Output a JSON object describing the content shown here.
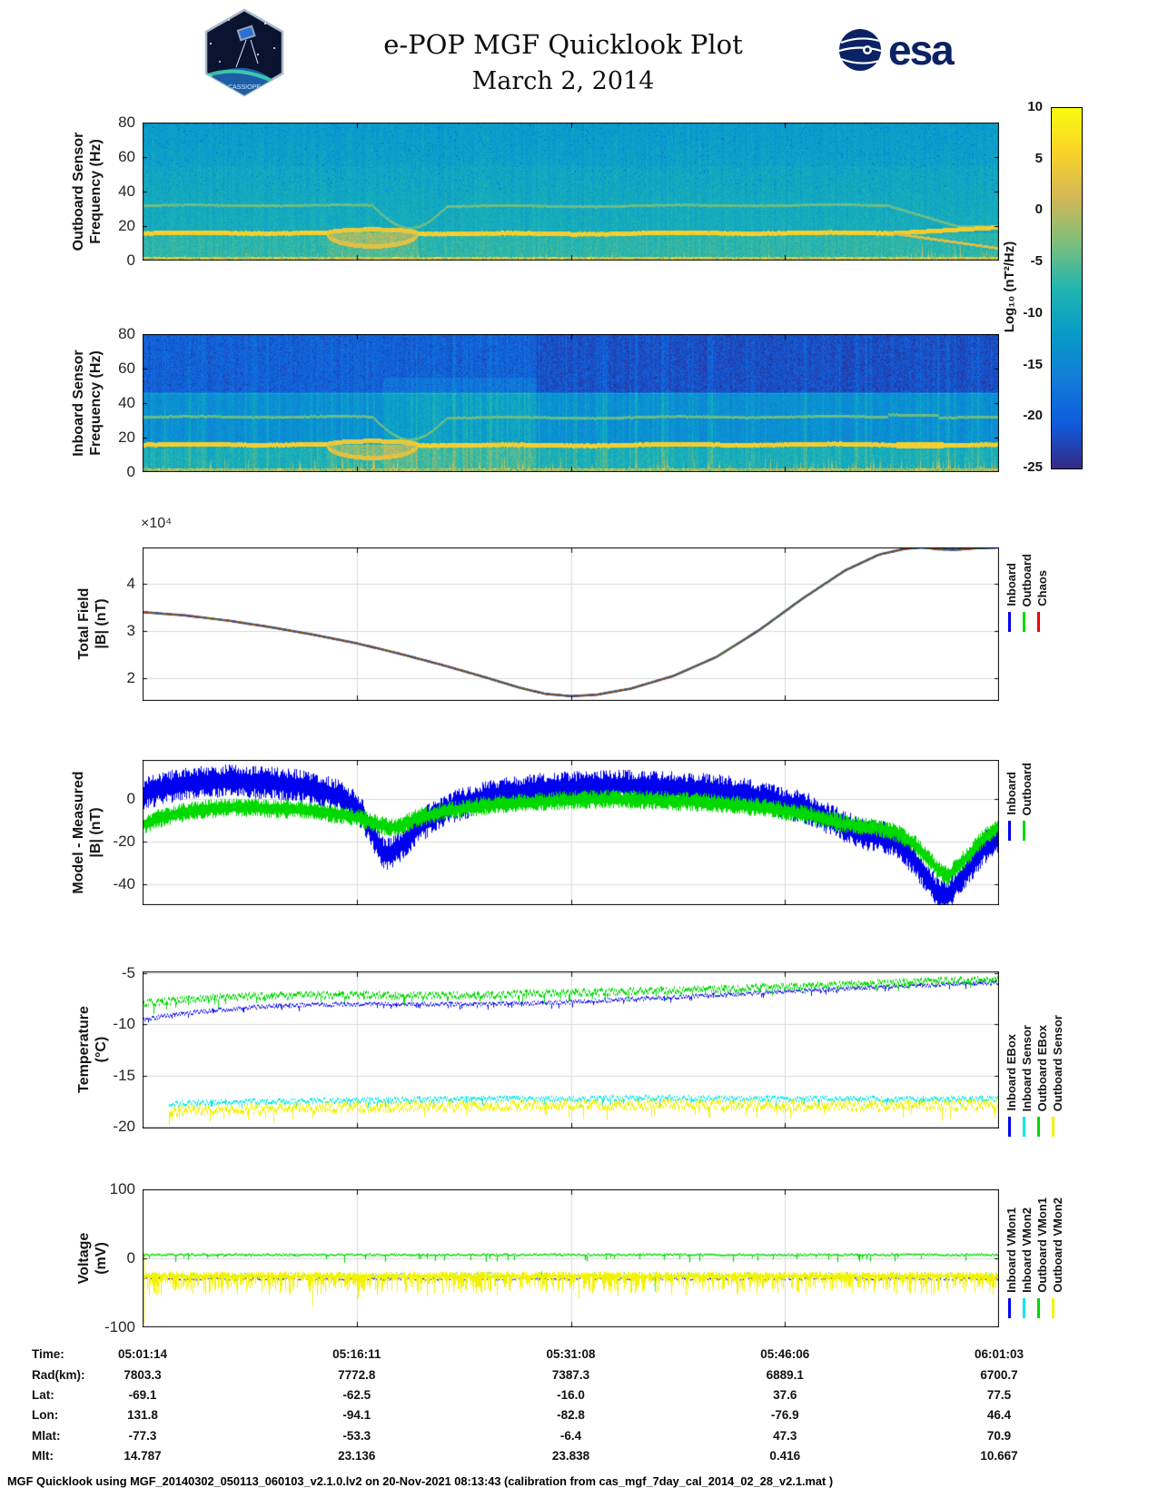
{
  "header": {
    "title": "e-POP MGF Quicklook Plot",
    "date": "March 2, 2014",
    "esa_text": "esa",
    "patch_name": "CASSIOPE"
  },
  "colorbar": {
    "label": "Log₁₀ (nT²/Hz)",
    "ticks": [
      10,
      5,
      0,
      -5,
      -10,
      -15,
      -20,
      -25
    ],
    "range": [
      -25,
      10
    ]
  },
  "panels": [
    {
      "ylabel1": "Outboard Sensor",
      "ylabel2": "Frequency (Hz)"
    },
    {
      "ylabel1": "Inboard Sensor",
      "ylabel2": "Frequency (Hz)"
    },
    {
      "ylabel1": "Total Field",
      "ylabel2": "|B| (nT)",
      "exp_label": "×10⁴",
      "legend": [
        {
          "label": "Inboard",
          "color": "#0000f0"
        },
        {
          "label": "Outboard",
          "color": "#00d800"
        },
        {
          "label": "Chaos",
          "color": "#f00000"
        }
      ]
    },
    {
      "ylabel1": "Model - Measured",
      "ylabel2": "|B| (nT)",
      "legend": [
        {
          "label": "Inboard",
          "color": "#0000f0"
        },
        {
          "label": "Outboard",
          "color": "#00d800"
        }
      ]
    },
    {
      "ylabel1": "Temperature",
      "ylabel2": "(°C)",
      "legend": [
        {
          "label": "Inboard EBox",
          "color": "#0000f0"
        },
        {
          "label": "Inboard Sensor",
          "color": "#00e8e8"
        },
        {
          "label": "Outboard EBox",
          "color": "#00d800"
        },
        {
          "label": "Outboard Sensor",
          "color": "#f2f200"
        }
      ]
    },
    {
      "ylabel1": "Voltage",
      "ylabel2": "(mV)",
      "legend": [
        {
          "label": "Inboard VMon1",
          "color": "#0000f0"
        },
        {
          "label": "Inboard VMon2",
          "color": "#00e8e8"
        },
        {
          "label": "Outboard VMon1",
          "color": "#00d800"
        },
        {
          "label": "Outboard VMon2",
          "color": "#f2f200"
        }
      ]
    }
  ],
  "table": {
    "rows": [
      {
        "label": "Time:",
        "values": [
          "05:01:14",
          "05:16:11",
          "05:31:08",
          "05:46:06",
          "06:01:03"
        ]
      },
      {
        "label": "Rad(km):",
        "values": [
          "7803.3",
          "7772.8",
          "7387.3",
          "6889.1",
          "6700.7"
        ]
      },
      {
        "label": "Lat:",
        "values": [
          "-69.1",
          "-62.5",
          "-16.0",
          "37.6",
          "77.5"
        ]
      },
      {
        "label": "Lon:",
        "values": [
          "131.8",
          "-94.1",
          "-82.8",
          "-76.9",
          "46.4"
        ]
      },
      {
        "label": "Mlat:",
        "values": [
          "-77.3",
          "-53.3",
          "-6.4",
          "47.3",
          "70.9"
        ]
      },
      {
        "label": "Mlt:",
        "values": [
          "14.787",
          "23.136",
          "23.838",
          "0.416",
          "10.667"
        ]
      }
    ]
  },
  "footer": {
    "text": "MGF Quicklook using MGF_20140302_050113_060103_v2.1.0.lv2 on 20-Nov-2021 08:13:43 (calibration from cas_mgf_7day_cal_2014_02_28_v2.1.mat )"
  },
  "chart_data": [
    {
      "id": "outboard_spectrogram",
      "type": "heatmap",
      "ylabel": "Outboard Sensor Frequency (Hz)",
      "ylim": [
        0,
        80
      ],
      "yticks": [
        0,
        20,
        40,
        60,
        80
      ],
      "x_time_range": [
        "05:01:14",
        "06:01:03"
      ],
      "colorbar_label": "Log₁₀ (nT²/Hz)",
      "colorbar_range": [
        -25,
        10
      ],
      "features": {
        "persistent_tone_hz": 16,
        "harmonic_hz": 32,
        "eye_center_frac": 0.268,
        "eye_halfwidth_frac": 0.053,
        "eye_min_hz": 8.5,
        "right_split_start_frac": 0.875,
        "broadband_noise_below_hz": 3,
        "style": "outboard"
      }
    },
    {
      "id": "inboard_spectrogram",
      "type": "heatmap",
      "ylabel": "Inboard Sensor Frequency (Hz)",
      "ylim": [
        0,
        80
      ],
      "yticks": [
        0,
        20,
        40,
        60,
        80
      ],
      "x_time_range": [
        "05:01:14",
        "06:01:03"
      ],
      "features": {
        "persistent_tone_hz": 16,
        "harmonic_hz": 32,
        "eye_center_frac": 0.268,
        "eye_halfwidth_frac": 0.053,
        "eye_min_hz": 8.5,
        "blob_frac": [
          0.88,
          0.935
        ],
        "broadband_noise_below_hz": 3,
        "style": "inboard"
      }
    },
    {
      "id": "total_field",
      "type": "line",
      "ylabel": "Total Field |B| (nT)",
      "scale_label": "×10⁴",
      "ylim": [
        1.52,
        4.77
      ],
      "yticks": [
        2,
        3,
        4
      ],
      "series_names": [
        "Inboard",
        "Outboard",
        "Chaos"
      ],
      "note": "all three curves overlap",
      "points_x_frac_value_1e4nT": [
        [
          0,
          3.4
        ],
        [
          0.05,
          3.33
        ],
        [
          0.1,
          3.22
        ],
        [
          0.15,
          3.08
        ],
        [
          0.2,
          2.92
        ],
        [
          0.25,
          2.74
        ],
        [
          0.3,
          2.52
        ],
        [
          0.35,
          2.28
        ],
        [
          0.4,
          2.02
        ],
        [
          0.44,
          1.8
        ],
        [
          0.47,
          1.67
        ],
        [
          0.5,
          1.62
        ],
        [
          0.53,
          1.65
        ],
        [
          0.57,
          1.78
        ],
        [
          0.62,
          2.05
        ],
        [
          0.67,
          2.45
        ],
        [
          0.72,
          3.02
        ],
        [
          0.77,
          3.68
        ],
        [
          0.82,
          4.28
        ],
        [
          0.86,
          4.62
        ],
        [
          0.89,
          4.74
        ],
        [
          0.91,
          4.77
        ],
        [
          0.93,
          4.73
        ],
        [
          0.95,
          4.72
        ],
        [
          0.97,
          4.75
        ],
        [
          1,
          4.77
        ]
      ]
    },
    {
      "id": "model_minus_measured",
      "type": "line",
      "ylabel": "Model - Measured |B| (nT)",
      "ylim": [
        -49.8,
        18.3
      ],
      "yticks": [
        0,
        -20,
        -40
      ],
      "series": [
        {
          "name": "Inboard",
          "color": "#0000f0",
          "noise_amp_nT": 6.5,
          "points": [
            [
              0,
              2
            ],
            [
              0.02,
              5
            ],
            [
              0.05,
              7
            ],
            [
              0.08,
              8
            ],
            [
              0.1,
              8.5
            ],
            [
              0.13,
              8
            ],
            [
              0.16,
              7
            ],
            [
              0.19,
              6
            ],
            [
              0.21,
              4
            ],
            [
              0.23,
              1
            ],
            [
              0.25,
              -4
            ],
            [
              0.26,
              -10
            ],
            [
              0.27,
              -18
            ],
            [
              0.28,
              -25
            ],
            [
              0.29,
              -26
            ],
            [
              0.3,
              -22
            ],
            [
              0.32,
              -14
            ],
            [
              0.34,
              -8
            ],
            [
              0.36,
              -4
            ],
            [
              0.4,
              1
            ],
            [
              0.44,
              3.5
            ],
            [
              0.48,
              5
            ],
            [
              0.52,
              5.5
            ],
            [
              0.56,
              6
            ],
            [
              0.6,
              5.5
            ],
            [
              0.64,
              5
            ],
            [
              0.68,
              3.5
            ],
            [
              0.71,
              1.5
            ],
            [
              0.74,
              -1
            ],
            [
              0.77,
              -4
            ],
            [
              0.79,
              -7
            ],
            [
              0.81,
              -11
            ],
            [
              0.83,
              -15
            ],
            [
              0.85,
              -17
            ],
            [
              0.86,
              -17.5
            ],
            [
              0.875,
              -19
            ],
            [
              0.89,
              -24
            ],
            [
              0.905,
              -31
            ],
            [
              0.92,
              -40
            ],
            [
              0.93,
              -46
            ],
            [
              0.94,
              -45
            ],
            [
              0.95,
              -40
            ],
            [
              0.965,
              -32
            ],
            [
              0.98,
              -24
            ],
            [
              1,
              -17
            ]
          ]
        },
        {
          "name": "Outboard",
          "color": "#00d800",
          "noise_amp_nT": 3.8,
          "points": [
            [
              0,
              -12
            ],
            [
              0.02,
              -9
            ],
            [
              0.05,
              -6
            ],
            [
              0.08,
              -4.5
            ],
            [
              0.1,
              -4
            ],
            [
              0.15,
              -4.5
            ],
            [
              0.18,
              -5
            ],
            [
              0.21,
              -6
            ],
            [
              0.24,
              -8
            ],
            [
              0.26,
              -10
            ],
            [
              0.275,
              -12
            ],
            [
              0.29,
              -13.5
            ],
            [
              0.305,
              -12
            ],
            [
              0.32,
              -9
            ],
            [
              0.35,
              -6
            ],
            [
              0.4,
              -3
            ],
            [
              0.45,
              -1.5
            ],
            [
              0.5,
              -0.5
            ],
            [
              0.55,
              0
            ],
            [
              0.6,
              -0.5
            ],
            [
              0.65,
              -1.5
            ],
            [
              0.7,
              -3
            ],
            [
              0.74,
              -5
            ],
            [
              0.78,
              -8
            ],
            [
              0.81,
              -11
            ],
            [
              0.84,
              -13
            ],
            [
              0.86,
              -13.5
            ],
            [
              0.88,
              -16
            ],
            [
              0.9,
              -21
            ],
            [
              0.915,
              -27
            ],
            [
              0.93,
              -34
            ],
            [
              0.94,
              -36
            ],
            [
              0.95,
              -32
            ],
            [
              0.965,
              -26
            ],
            [
              0.98,
              -19
            ],
            [
              1,
              -13
            ]
          ]
        }
      ]
    },
    {
      "id": "temperature",
      "type": "line",
      "ylabel": "Temperature (°C)",
      "ylim": [
        -20.2,
        -4.8
      ],
      "yticks": [
        -5,
        -10,
        -15,
        -20
      ],
      "series": [
        {
          "name": "Inboard EBox",
          "color": "#0000f0",
          "noise_amp": 0.18,
          "points": [
            [
              0,
              -9.5
            ],
            [
              0.05,
              -8.9
            ],
            [
              0.1,
              -8.5
            ],
            [
              0.15,
              -8.2
            ],
            [
              0.2,
              -8.05
            ],
            [
              0.3,
              -8.0
            ],
            [
              0.4,
              -8.0
            ],
            [
              0.45,
              -7.95
            ],
            [
              0.5,
              -7.8
            ],
            [
              0.6,
              -7.4
            ],
            [
              0.7,
              -7.0
            ],
            [
              0.8,
              -6.6
            ],
            [
              0.9,
              -6.2
            ],
            [
              1,
              -5.9
            ]
          ]
        },
        {
          "name": "Outboard EBox",
          "color": "#00d800",
          "noise_amp": 0.32,
          "points": [
            [
              0,
              -7.9
            ],
            [
              0.05,
              -7.6
            ],
            [
              0.1,
              -7.3
            ],
            [
              0.15,
              -7.2
            ],
            [
              0.25,
              -7.1
            ],
            [
              0.35,
              -7.2
            ],
            [
              0.45,
              -7.0
            ],
            [
              0.55,
              -6.8
            ],
            [
              0.65,
              -6.6
            ],
            [
              0.75,
              -6.3
            ],
            [
              0.85,
              -6.0
            ],
            [
              0.95,
              -5.7
            ],
            [
              1,
              -5.6
            ]
          ]
        },
        {
          "name": "Inboard Sensor",
          "color": "#00e8e8",
          "noise_amp": 0.25,
          "points": [
            [
              0,
              -17.9
            ],
            [
              0.1,
              -17.6
            ],
            [
              0.2,
              -17.5
            ],
            [
              0.3,
              -17.4
            ],
            [
              0.4,
              -17.3
            ],
            [
              0.5,
              -17.3
            ],
            [
              0.6,
              -17.2
            ],
            [
              0.7,
              -17.3
            ],
            [
              0.8,
              -17.3
            ],
            [
              0.9,
              -17.3
            ],
            [
              1,
              -17.3
            ]
          ]
        },
        {
          "name": "Outboard Sensor",
          "color": "#f2f200",
          "noise_amp": 0.45,
          "points": [
            [
              0,
              -18.6
            ],
            [
              0.1,
              -18.3
            ],
            [
              0.2,
              -18.2
            ],
            [
              0.3,
              -18.1
            ],
            [
              0.4,
              -18.0
            ],
            [
              0.5,
              -17.9
            ],
            [
              0.6,
              -17.9
            ],
            [
              0.7,
              -17.9
            ],
            [
              0.8,
              -18.0
            ],
            [
              0.9,
              -18.0
            ],
            [
              1,
              -17.9
            ]
          ]
        }
      ]
    },
    {
      "id": "voltage",
      "type": "line",
      "ylabel": "Voltage (mV)",
      "ylim": [
        -100,
        100
      ],
      "yticks": [
        100,
        0,
        -100
      ],
      "series": [
        {
          "name": "Inboard VMon1",
          "color": "#0000f0",
          "base_mV": -30,
          "style": "dashed",
          "noise_amp": 2
        },
        {
          "name": "Inboard VMon2",
          "color": "#00e8e8",
          "base_mV": -25,
          "style": "sparse",
          "noise_amp": 6
        },
        {
          "name": "Outboard VMon1",
          "color": "#00d800",
          "base_mV": 5,
          "style": "band",
          "noise_amp": 3
        },
        {
          "name": "Outboard VMon2",
          "color": "#f2f200",
          "base_mV": -25,
          "style": "noisy-band",
          "noise_range_mV": [
            -60,
            -19
          ]
        }
      ]
    }
  ]
}
